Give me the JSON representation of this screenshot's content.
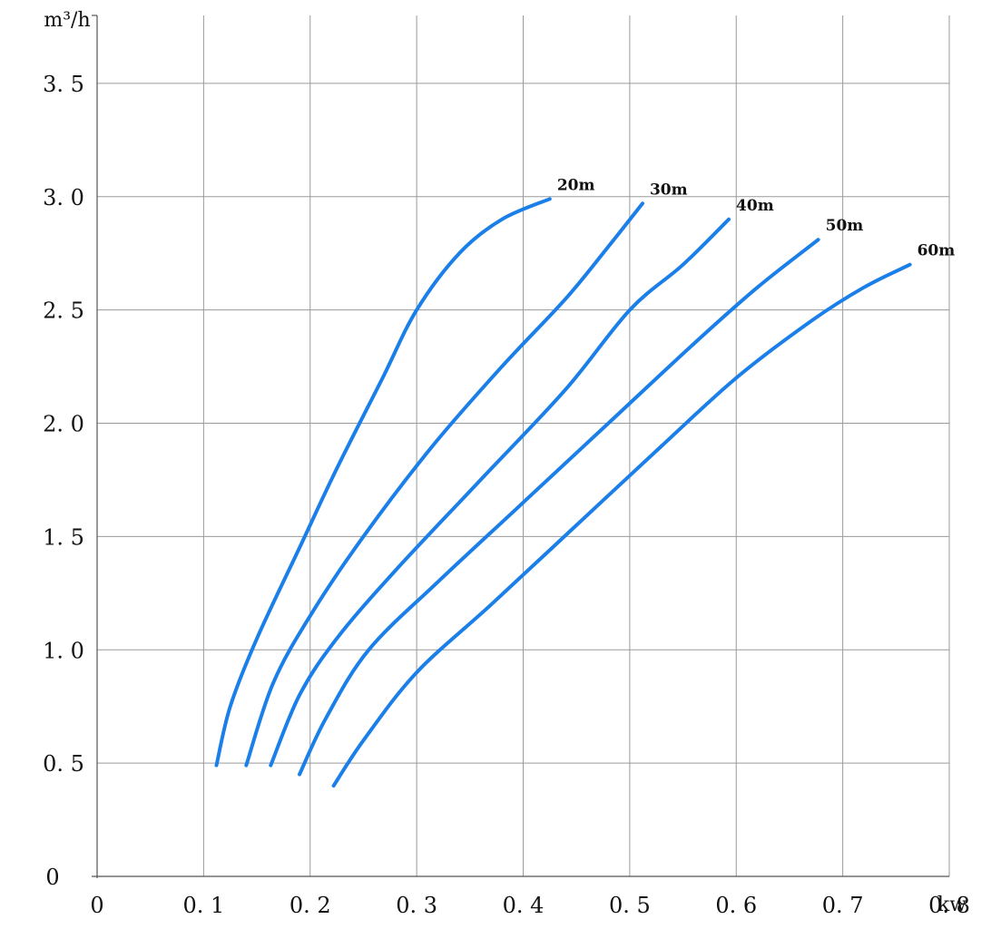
{
  "chart_data": {
    "type": "line",
    "xlabel": "kw",
    "ylabel": "m³/h",
    "xlim": [
      0,
      0.8
    ],
    "ylim": [
      0,
      3.8
    ],
    "x_ticks": [
      "0",
      "0.1",
      "0.2",
      "0.3",
      "0.4",
      "0.5",
      "0.6",
      "0.7",
      "0.8"
    ],
    "y_ticks": [
      "0",
      "0.5",
      "1.0",
      "1.5",
      "2.0",
      "2.5",
      "3.0",
      "3.5"
    ],
    "grid": true,
    "line_color": "#1a7fe8",
    "series": [
      {
        "name": "20m",
        "points": [
          [
            0.112,
            0.49
          ],
          [
            0.125,
            0.75
          ],
          [
            0.15,
            1.05
          ],
          [
            0.19,
            1.45
          ],
          [
            0.225,
            1.8
          ],
          [
            0.268,
            2.2
          ],
          [
            0.3,
            2.5
          ],
          [
            0.34,
            2.75
          ],
          [
            0.38,
            2.9
          ],
          [
            0.425,
            2.99
          ]
        ]
      },
      {
        "name": "30m",
        "points": [
          [
            0.14,
            0.49
          ],
          [
            0.165,
            0.85
          ],
          [
            0.2,
            1.15
          ],
          [
            0.25,
            1.5
          ],
          [
            0.315,
            1.9
          ],
          [
            0.38,
            2.25
          ],
          [
            0.44,
            2.55
          ],
          [
            0.48,
            2.78
          ],
          [
            0.512,
            2.97
          ]
        ]
      },
      {
        "name": "40m",
        "points": [
          [
            0.163,
            0.49
          ],
          [
            0.19,
            0.8
          ],
          [
            0.225,
            1.05
          ],
          [
            0.28,
            1.35
          ],
          [
            0.36,
            1.75
          ],
          [
            0.44,
            2.15
          ],
          [
            0.5,
            2.5
          ],
          [
            0.55,
            2.7
          ],
          [
            0.593,
            2.9
          ]
        ]
      },
      {
        "name": "50m",
        "points": [
          [
            0.19,
            0.45
          ],
          [
            0.215,
            0.7
          ],
          [
            0.255,
            1.0
          ],
          [
            0.32,
            1.3
          ],
          [
            0.4,
            1.65
          ],
          [
            0.48,
            2.0
          ],
          [
            0.56,
            2.35
          ],
          [
            0.62,
            2.6
          ],
          [
            0.677,
            2.81
          ]
        ]
      },
      {
        "name": "60m",
        "points": [
          [
            0.222,
            0.4
          ],
          [
            0.25,
            0.6
          ],
          [
            0.3,
            0.9
          ],
          [
            0.37,
            1.2
          ],
          [
            0.45,
            1.55
          ],
          [
            0.53,
            1.9
          ],
          [
            0.6,
            2.2
          ],
          [
            0.67,
            2.45
          ],
          [
            0.72,
            2.6
          ],
          [
            0.763,
            2.7
          ]
        ]
      }
    ]
  }
}
